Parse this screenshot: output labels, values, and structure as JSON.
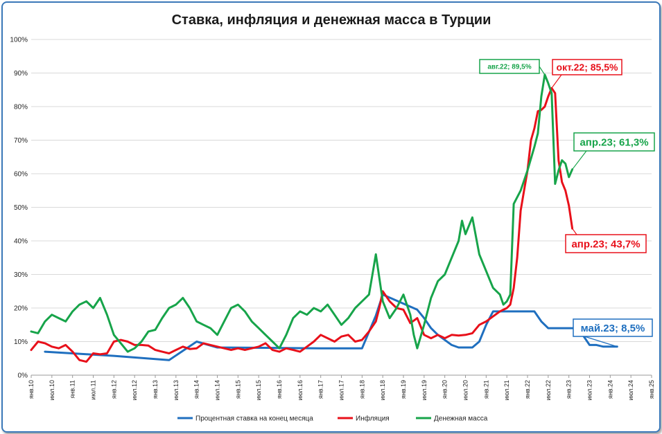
{
  "chart_data": {
    "type": "line",
    "title": "Ставка, инфляция и денежная масса в Турции",
    "xlabel": "",
    "ylabel": "",
    "ylim": [
      0,
      100
    ],
    "y_ticks": [
      "0%",
      "10%",
      "20%",
      "30%",
      "40%",
      "50%",
      "60%",
      "70%",
      "80%",
      "90%",
      "100%"
    ],
    "x_ticks": [
      "янв.10",
      "июл.10",
      "янв.11",
      "июл.11",
      "янв.12",
      "июл.12",
      "янв.13",
      "июл.13",
      "янв.14",
      "июл.14",
      "янв.15",
      "июл.15",
      "янв.16",
      "июл.16",
      "янв.17",
      "июл.17",
      "янв.18",
      "июл.18",
      "янв.19",
      "июл.19",
      "янв.20",
      "июл.20",
      "янв.21",
      "июл.21",
      "янв.22",
      "июл.22",
      "янв.23",
      "июл.23",
      "янв.24",
      "июл.24",
      "янв.25"
    ],
    "grid": "horizontal",
    "legend_position": "bottom",
    "series": [
      {
        "name": "Процентная ставка на конец месяца",
        "color": "#1f6fbf",
        "points": [
          [
            4,
            7
          ],
          [
            16,
            6.25
          ],
          [
            24,
            5.75
          ],
          [
            40,
            4.5
          ],
          [
            48,
            10
          ],
          [
            54,
            8.25
          ],
          [
            84,
            8
          ],
          [
            96,
            8
          ],
          [
            100,
            17.75
          ],
          [
            102,
            24
          ],
          [
            112,
            19.5
          ],
          [
            114,
            17
          ],
          [
            116,
            14
          ],
          [
            118,
            12
          ],
          [
            122,
            9
          ],
          [
            124,
            8.25
          ],
          [
            128,
            8.25
          ],
          [
            130,
            10
          ],
          [
            132,
            15
          ],
          [
            134,
            19
          ],
          [
            146,
            19
          ],
          [
            148,
            16
          ],
          [
            150,
            14
          ],
          [
            158,
            14
          ],
          [
            160,
            12
          ],
          [
            162,
            9
          ],
          [
            164,
            9
          ],
          [
            166,
            8.5
          ],
          [
            170,
            8.5
          ]
        ]
      },
      {
        "name": "Инфляция",
        "color": "#e8101a",
        "points": [
          [
            0,
            7.5
          ],
          [
            2,
            10
          ],
          [
            4,
            9.5
          ],
          [
            6,
            8.5
          ],
          [
            8,
            8
          ],
          [
            10,
            9
          ],
          [
            12,
            7
          ],
          [
            14,
            4.5
          ],
          [
            16,
            4
          ],
          [
            18,
            6.5
          ],
          [
            20,
            6.2
          ],
          [
            22,
            6.5
          ],
          [
            24,
            10
          ],
          [
            26,
            10.5
          ],
          [
            28,
            10
          ],
          [
            30,
            9
          ],
          [
            32,
            9
          ],
          [
            34,
            8.8
          ],
          [
            36,
            7.5
          ],
          [
            38,
            7
          ],
          [
            40,
            6.5
          ],
          [
            42,
            7.5
          ],
          [
            44,
            8.5
          ],
          [
            46,
            7.8
          ],
          [
            48,
            8
          ],
          [
            50,
            9.5
          ],
          [
            52,
            9
          ],
          [
            54,
            8.5
          ],
          [
            56,
            8
          ],
          [
            58,
            7.5
          ],
          [
            60,
            8
          ],
          [
            62,
            7.5
          ],
          [
            64,
            8
          ],
          [
            66,
            8.5
          ],
          [
            68,
            9.5
          ],
          [
            70,
            7.5
          ],
          [
            72,
            7
          ],
          [
            74,
            8
          ],
          [
            76,
            7.5
          ],
          [
            78,
            7
          ],
          [
            80,
            8.5
          ],
          [
            82,
            10
          ],
          [
            84,
            12
          ],
          [
            86,
            11
          ],
          [
            88,
            10
          ],
          [
            90,
            11.5
          ],
          [
            92,
            12
          ],
          [
            94,
            10
          ],
          [
            96,
            10.5
          ],
          [
            98,
            13
          ],
          [
            100,
            16
          ],
          [
            101,
            20
          ],
          [
            102,
            25
          ],
          [
            104,
            22
          ],
          [
            106,
            20
          ],
          [
            108,
            19.5
          ],
          [
            110,
            15.5
          ],
          [
            112,
            17
          ],
          [
            114,
            12
          ],
          [
            116,
            11
          ],
          [
            118,
            12
          ],
          [
            120,
            11
          ],
          [
            122,
            12
          ],
          [
            124,
            11.8
          ],
          [
            126,
            12
          ],
          [
            128,
            12.5
          ],
          [
            130,
            15
          ],
          [
            132,
            16
          ],
          [
            134,
            17.5
          ],
          [
            136,
            19
          ],
          [
            138,
            20
          ],
          [
            139,
            21
          ],
          [
            140,
            26
          ],
          [
            141,
            35
          ],
          [
            142,
            49
          ],
          [
            143,
            55
          ],
          [
            144,
            61
          ],
          [
            145,
            70
          ],
          [
            146,
            73.5
          ],
          [
            147,
            78.6
          ],
          [
            148,
            79
          ],
          [
            149,
            80
          ],
          [
            150,
            83
          ],
          [
            151,
            85.5
          ],
          [
            152,
            84
          ],
          [
            153,
            64
          ],
          [
            154,
            57.5
          ],
          [
            155,
            55
          ],
          [
            156,
            50.5
          ],
          [
            157,
            43.7
          ]
        ]
      },
      {
        "name": "Денежная масса",
        "color": "#17a44a",
        "points": [
          [
            0,
            13
          ],
          [
            2,
            12.5
          ],
          [
            4,
            16
          ],
          [
            6,
            18
          ],
          [
            8,
            17
          ],
          [
            10,
            16
          ],
          [
            12,
            19
          ],
          [
            14,
            21
          ],
          [
            16,
            22
          ],
          [
            18,
            20
          ],
          [
            20,
            23
          ],
          [
            22,
            18
          ],
          [
            24,
            12
          ],
          [
            26,
            9.5
          ],
          [
            28,
            7
          ],
          [
            30,
            8
          ],
          [
            32,
            10
          ],
          [
            34,
            13
          ],
          [
            36,
            13.5
          ],
          [
            38,
            17
          ],
          [
            40,
            20
          ],
          [
            42,
            21
          ],
          [
            44,
            23
          ],
          [
            46,
            20
          ],
          [
            48,
            16
          ],
          [
            50,
            15
          ],
          [
            52,
            14
          ],
          [
            54,
            12
          ],
          [
            56,
            16
          ],
          [
            58,
            20
          ],
          [
            60,
            21
          ],
          [
            62,
            19
          ],
          [
            64,
            16
          ],
          [
            66,
            14
          ],
          [
            68,
            12
          ],
          [
            70,
            10
          ],
          [
            72,
            8
          ],
          [
            74,
            12
          ],
          [
            76,
            17
          ],
          [
            78,
            19
          ],
          [
            80,
            18
          ],
          [
            82,
            20
          ],
          [
            84,
            19
          ],
          [
            86,
            21
          ],
          [
            88,
            18
          ],
          [
            90,
            15
          ],
          [
            92,
            17
          ],
          [
            94,
            20
          ],
          [
            96,
            22
          ],
          [
            98,
            24
          ],
          [
            99,
            30
          ],
          [
            100,
            36
          ],
          [
            102,
            22
          ],
          [
            104,
            17
          ],
          [
            106,
            20
          ],
          [
            108,
            24
          ],
          [
            110,
            18
          ],
          [
            111,
            12
          ],
          [
            112,
            8
          ],
          [
            114,
            15
          ],
          [
            116,
            23
          ],
          [
            118,
            28
          ],
          [
            120,
            30
          ],
          [
            122,
            35
          ],
          [
            124,
            40
          ],
          [
            125,
            46
          ],
          [
            126,
            42
          ],
          [
            128,
            47
          ],
          [
            130,
            36
          ],
          [
            132,
            31
          ],
          [
            134,
            26
          ],
          [
            136,
            24
          ],
          [
            137,
            21
          ],
          [
            138,
            22
          ],
          [
            139,
            24
          ],
          [
            140,
            51
          ],
          [
            142,
            55
          ],
          [
            144,
            61
          ],
          [
            146,
            68
          ],
          [
            147,
            72
          ],
          [
            148,
            83
          ],
          [
            149,
            89.5
          ],
          [
            150,
            87
          ],
          [
            151,
            84
          ],
          [
            152,
            57
          ],
          [
            153,
            61
          ],
          [
            154,
            64
          ],
          [
            155,
            63
          ],
          [
            156,
            59
          ],
          [
            157,
            61.3
          ]
        ]
      }
    ],
    "annotations": [
      {
        "label": "авг.22; 89,5%",
        "color": "#17a44a"
      },
      {
        "label": "окт.22; 85,5%",
        "color": "#e8101a"
      },
      {
        "label": "апр.23; 61,3%",
        "color": "#17a44a"
      },
      {
        "label": "апр.23; 43,7%",
        "color": "#e8101a"
      },
      {
        "label": "май.23; 8,5%",
        "color": "#1f6fbf"
      }
    ]
  }
}
